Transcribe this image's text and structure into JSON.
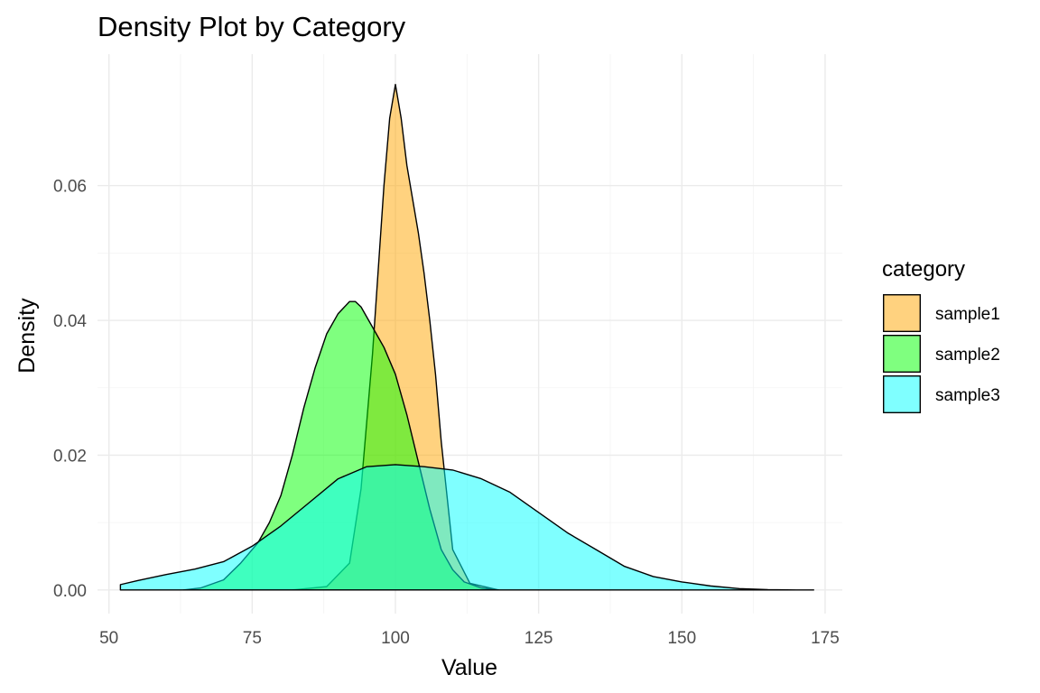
{
  "chart_data": {
    "type": "area",
    "title": "Density Plot by Category",
    "xlabel": "Value",
    "ylabel": "Density",
    "xlim": [
      48,
      178
    ],
    "ylim": [
      -0.0035,
      0.0795
    ],
    "x_ticks": [
      50,
      75,
      100,
      125,
      150,
      175
    ],
    "y_ticks": [
      0.0,
      0.02,
      0.04,
      0.06
    ],
    "y_tick_labels": [
      "0.00",
      "0.02",
      "0.04",
      "0.06"
    ],
    "grid": true,
    "legend": {
      "title": "category",
      "position": "right"
    },
    "series": [
      {
        "name": "sample1",
        "color": "#FFA500",
        "x": [
          82,
          88,
          92,
          94,
          96,
          98,
          99,
          100,
          101,
          102,
          103,
          104,
          105,
          106,
          107,
          108,
          109,
          110,
          113,
          118
        ],
        "y": [
          0.0,
          0.0005,
          0.004,
          0.015,
          0.035,
          0.06,
          0.07,
          0.075,
          0.07,
          0.063,
          0.058,
          0.053,
          0.047,
          0.04,
          0.032,
          0.022,
          0.014,
          0.006,
          0.001,
          0.0
        ]
      },
      {
        "name": "sample2",
        "color": "#00FF00",
        "x": [
          63,
          66,
          70,
          73,
          76,
          78,
          80,
          82,
          84,
          86,
          88,
          90,
          92,
          93,
          94,
          96,
          98,
          100,
          102,
          104,
          106,
          108,
          110,
          112,
          115,
          118
        ],
        "y": [
          0.0,
          0.0003,
          0.0015,
          0.004,
          0.007,
          0.01,
          0.014,
          0.02,
          0.027,
          0.033,
          0.038,
          0.041,
          0.0428,
          0.0428,
          0.042,
          0.039,
          0.036,
          0.032,
          0.026,
          0.019,
          0.012,
          0.006,
          0.003,
          0.0012,
          0.0003,
          0.0
        ]
      },
      {
        "name": "sample3",
        "color": "#00FFFF",
        "x": [
          52,
          55,
          60,
          65,
          70,
          75,
          80,
          85,
          90,
          95,
          100,
          105,
          110,
          115,
          120,
          125,
          130,
          135,
          140,
          145,
          150,
          155,
          160,
          165,
          170,
          173
        ],
        "y": [
          0.0008,
          0.0014,
          0.0023,
          0.0031,
          0.0042,
          0.0065,
          0.0095,
          0.013,
          0.0165,
          0.0183,
          0.0186,
          0.0183,
          0.0178,
          0.0165,
          0.0145,
          0.0115,
          0.0085,
          0.006,
          0.0035,
          0.002,
          0.0012,
          0.0006,
          0.0002,
          5e-05,
          0.0,
          0.0
        ]
      }
    ]
  }
}
